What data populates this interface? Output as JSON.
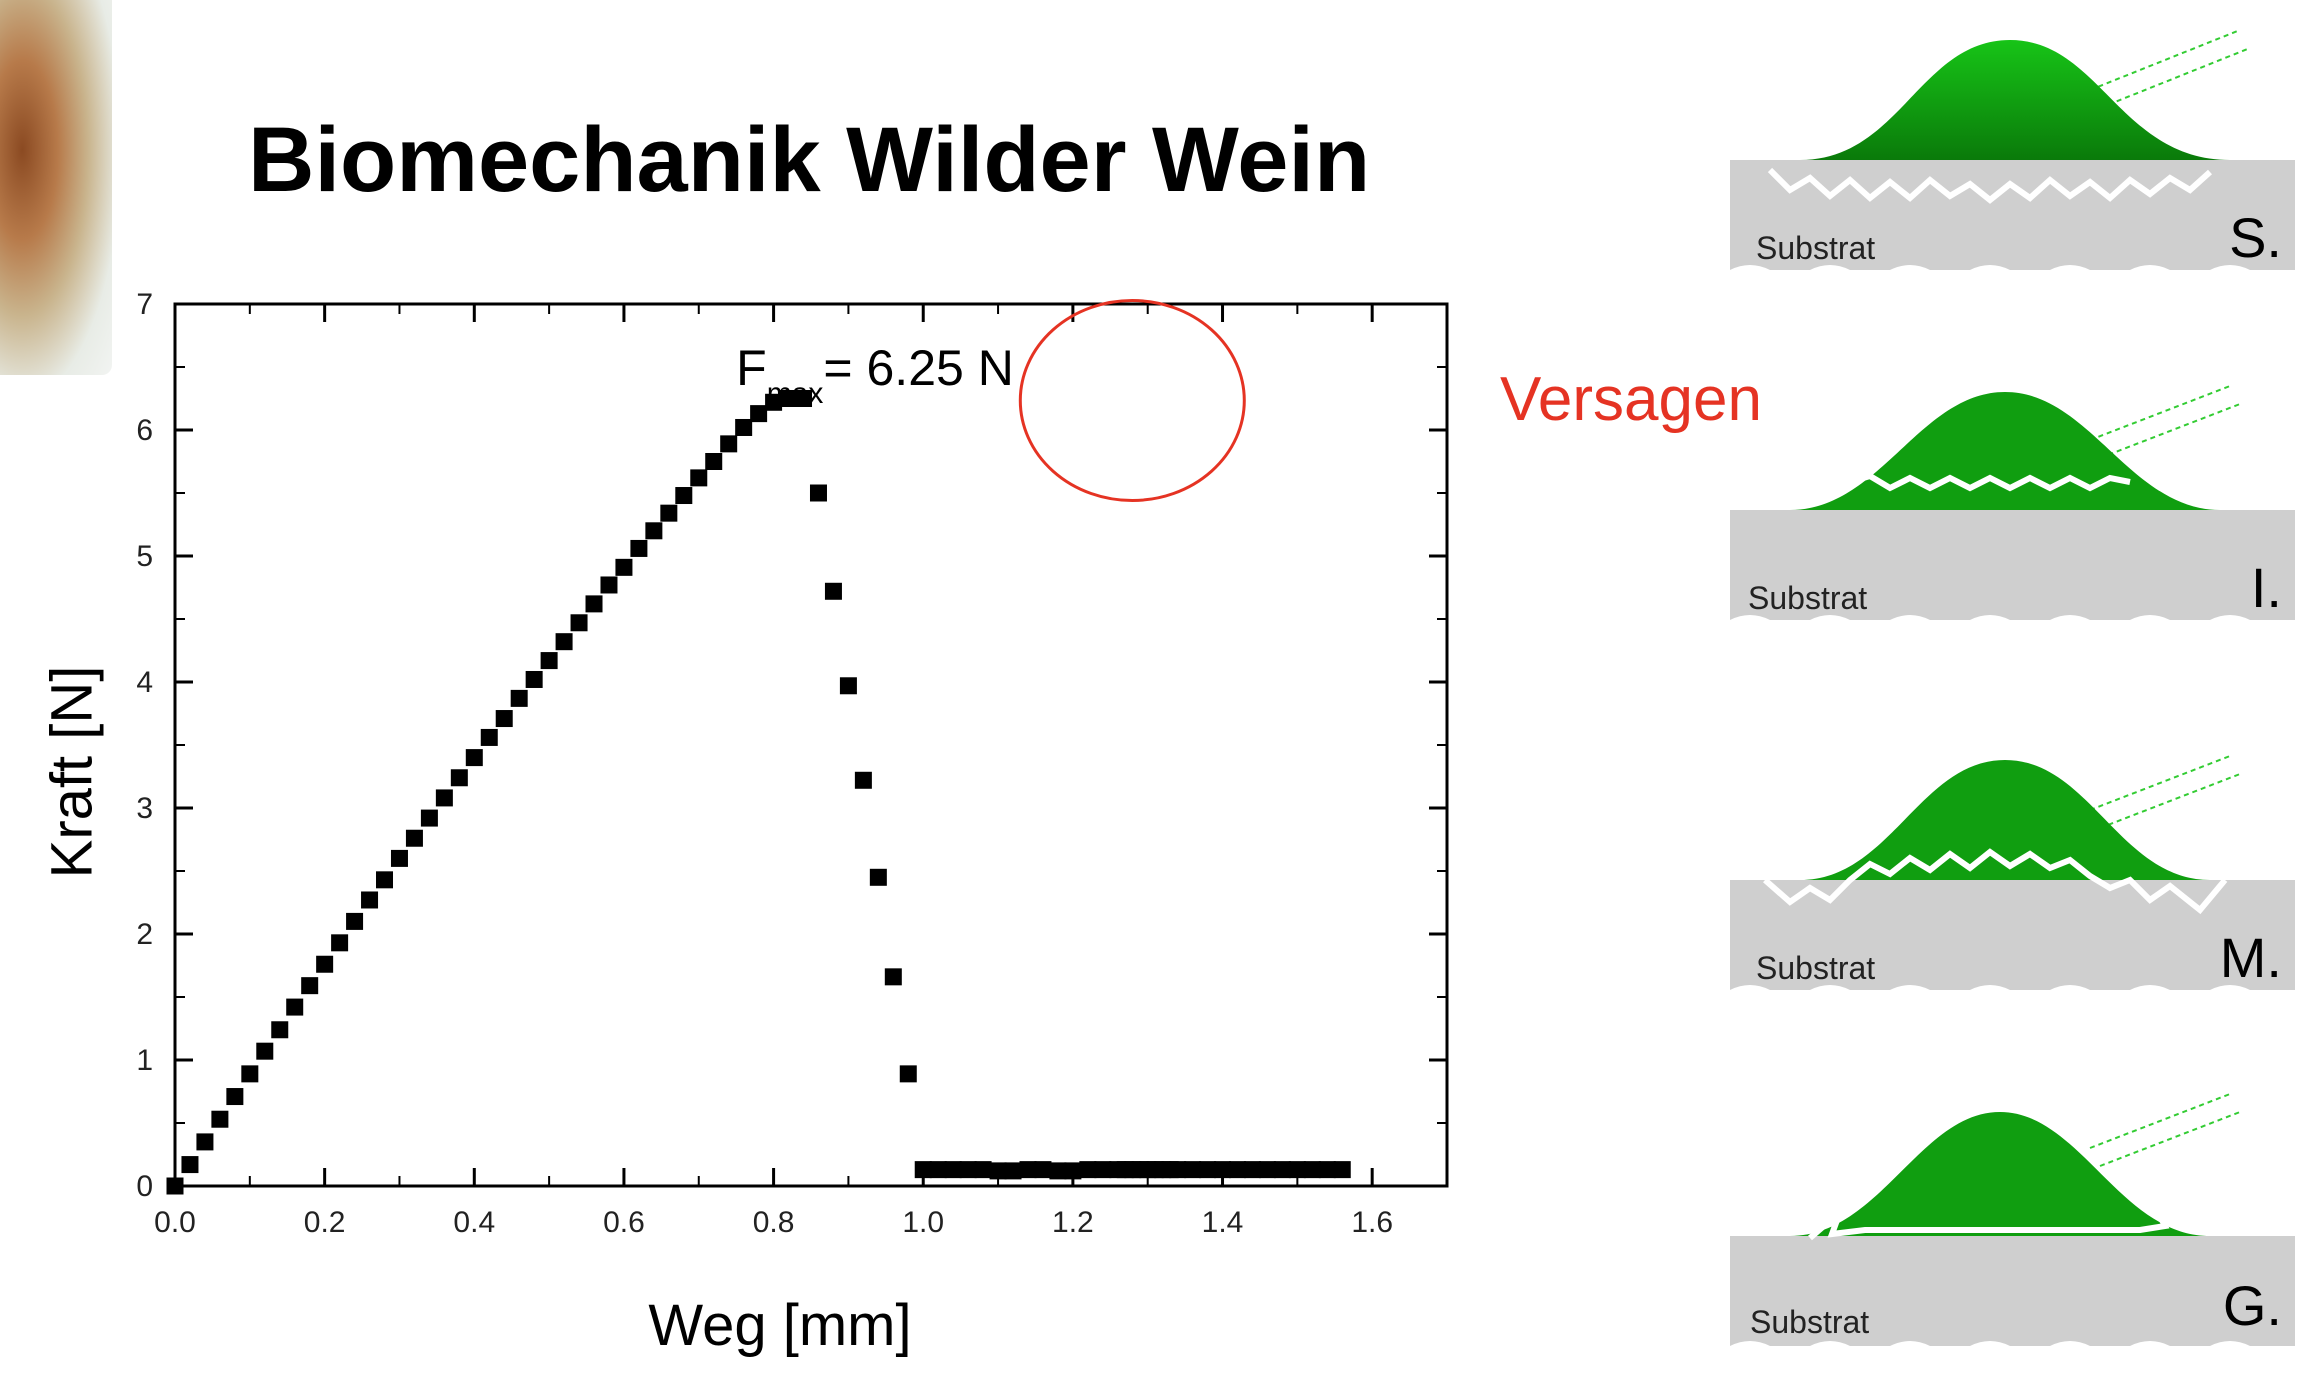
{
  "slide": {
    "title": "Biomechanik Wilder Wein",
    "failure_label": "Versagen"
  },
  "chart_data": {
    "type": "scatter",
    "xlabel": "Weg [mm]",
    "ylabel": "Kraft [N]",
    "xlim": [
      0.0,
      1.7
    ],
    "ylim": [
      0,
      7
    ],
    "x_ticks": [
      "0.0",
      "0.2",
      "0.4",
      "0.6",
      "0.8",
      "1.0",
      "1.2",
      "1.4",
      "1.6"
    ],
    "y_ticks": [
      "0",
      "1",
      "2",
      "3",
      "4",
      "5",
      "6",
      "7"
    ],
    "grid": false,
    "marker": "square",
    "marker_color": "#000000",
    "annotation": {
      "base": "F",
      "subscript": "max",
      "text": "= 6.25 N",
      "x": 1.25,
      "y": 6.25
    },
    "highlight_color": "#e53323",
    "series": [
      {
        "x": [
          0.0,
          0.02,
          0.04,
          0.06,
          0.08,
          0.1,
          0.12,
          0.14,
          0.16,
          0.18,
          0.2,
          0.22,
          0.24,
          0.26,
          0.28,
          0.3,
          0.32,
          0.34,
          0.36,
          0.38,
          0.4,
          0.42,
          0.44,
          0.46,
          0.48,
          0.5,
          0.52,
          0.54,
          0.56,
          0.58,
          0.6,
          0.62,
          0.64,
          0.66,
          0.68,
          0.7,
          0.72,
          0.74,
          0.76,
          0.78,
          0.8,
          0.82,
          0.84,
          0.86,
          0.88,
          0.9,
          0.92,
          0.94,
          0.96,
          0.98,
          1.0,
          1.02,
          1.04,
          1.06,
          1.08,
          1.1,
          1.12,
          1.14,
          1.16,
          1.18,
          1.2,
          1.22,
          1.24,
          1.26,
          1.27,
          1.28,
          1.29,
          1.3,
          1.31,
          1.32,
          1.33,
          1.34,
          1.36,
          1.38,
          1.4,
          1.42,
          1.44,
          1.46,
          1.48,
          1.5,
          1.52,
          1.54,
          1.56
        ],
        "y": [
          0.0,
          0.17,
          0.35,
          0.53,
          0.71,
          0.89,
          1.07,
          1.24,
          1.42,
          1.59,
          1.76,
          1.93,
          2.1,
          2.27,
          2.43,
          2.6,
          2.76,
          2.92,
          3.08,
          3.24,
          3.4,
          3.56,
          3.71,
          3.87,
          4.02,
          4.17,
          4.32,
          4.47,
          4.62,
          4.77,
          4.91,
          5.06,
          5.2,
          5.34,
          5.48,
          5.62,
          5.75,
          5.89,
          6.02,
          6.13,
          6.22,
          6.25,
          6.25,
          5.5,
          4.72,
          3.97,
          3.22,
          2.45,
          1.66,
          0.89,
          0.13,
          0.13,
          0.13,
          0.13,
          0.13,
          0.12,
          0.12,
          0.13,
          0.13,
          0.12,
          0.12,
          0.13,
          0.13,
          0.13,
          0.13,
          0.13,
          0.13,
          0.13,
          0.13,
          0.13,
          0.13,
          0.13,
          0.13,
          0.13,
          0.13,
          0.13,
          0.13,
          0.13,
          0.13,
          0.13,
          0.13,
          0.13,
          0.13
        ]
      }
    ]
  },
  "failure_modes": [
    {
      "letter": "S.",
      "substrate_label": "Substrat"
    },
    {
      "letter": "I.",
      "substrate_label": "Substrat"
    },
    {
      "letter": "M.",
      "substrate_label": "Substrat"
    },
    {
      "letter": "G.",
      "substrate_label": "Substrat"
    }
  ]
}
